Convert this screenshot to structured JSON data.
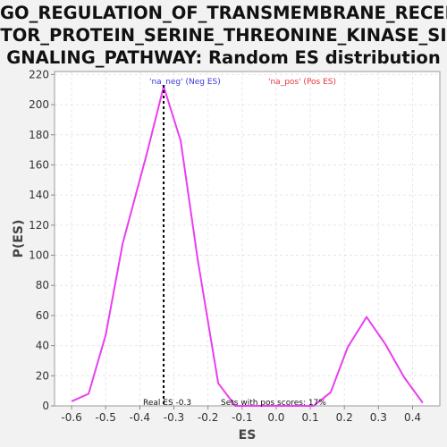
{
  "chart_data": {
    "type": "line",
    "title_lines": [
      "GO_REGULATION_OF_TRANSMEMBRANE_RECEP",
      "TOR_PROTEIN_SERINE_THREONINE_KINASE_SI",
      "GNALING_PATHWAY: Random ES distribution"
    ],
    "xlabel": "ES",
    "ylabel": "P(ES)",
    "xlim": [
      -0.65,
      0.48
    ],
    "ylim": [
      0,
      222
    ],
    "xticks": [
      -0.6,
      -0.5,
      -0.4,
      -0.3,
      -0.2,
      -0.1,
      0.0,
      0.1,
      0.2,
      0.3,
      0.4
    ],
    "xtick_labels": [
      "-0.6",
      "-0.5",
      "-0.4",
      "-0.3",
      "-0.2",
      "-0.1",
      "0.0",
      "0.1",
      "0.2",
      "0.3",
      "0.4"
    ],
    "yticks": [
      0,
      20,
      40,
      60,
      80,
      100,
      120,
      140,
      160,
      180,
      200,
      220
    ],
    "ytick_labels": [
      "0",
      "20",
      "40",
      "60",
      "80",
      "100",
      "120",
      "140",
      "160",
      "180",
      "200",
      "220"
    ],
    "grid": true,
    "series": [
      {
        "color": "#e93ff0",
        "x": [
          -0.6,
          -0.55,
          -0.5,
          -0.45,
          -0.38,
          -0.33,
          -0.28,
          -0.23,
          -0.17,
          -0.12,
          0.11,
          0.16,
          0.21,
          0.265,
          0.32,
          0.375,
          0.43
        ],
        "y": [
          3,
          8,
          47,
          108,
          167,
          212,
          176,
          97,
          15,
          0,
          0,
          9,
          39,
          59,
          41,
          19,
          2
        ]
      }
    ],
    "real_es": {
      "value": -0.33,
      "color": "#000000",
      "label": "Real ES -0.3"
    },
    "annotations": {
      "neg_label": "'na_neg' (Neg ES)",
      "neg_color": "#3a3ad8",
      "pos_label": "'na_pos' (Pos ES)",
      "pos_color": "#e8343a",
      "sets_label": "Sets with pos scores: 17%"
    },
    "colors": {
      "plot_background": "#ffffff",
      "page_background": "#f2f2f2",
      "grid": "#e6e6e6"
    }
  }
}
